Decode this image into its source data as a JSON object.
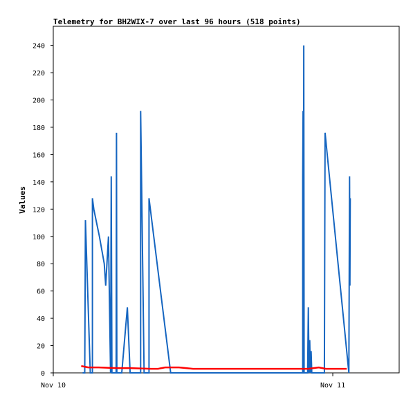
{
  "chart_data": {
    "type": "line",
    "title": "Telemetry for BH2WIX-7 over last 96 hours (518 points)",
    "xlabel": "",
    "ylabel": "Values",
    "ylim": [
      0,
      254
    ],
    "y_ticks": [
      0,
      20,
      40,
      60,
      80,
      100,
      120,
      140,
      160,
      180,
      200,
      220,
      240
    ],
    "x_tick_labels": [
      "Nov 10",
      "Nov 11"
    ],
    "grid": false,
    "legend": "none",
    "colors": {
      "blue": "#1565c0",
      "red": "#ff0000",
      "axis": "#000000"
    },
    "series": [
      {
        "color": "#1565c0",
        "x": [
          0.42,
          0.45,
          0.455,
          0.46,
          0.53,
          0.56,
          0.56,
          0.58,
          0.62,
          0.66,
          0.73,
          0.75,
          0.79,
          0.82,
          0.83,
          0.84,
          0.86,
          0.88,
          0.9,
          0.905,
          0.91,
          0.98,
          1.06,
          1.1,
          1.12,
          1.23,
          1.25,
          1.25,
          1.3,
          1.34,
          1.37,
          1.37,
          1.68,
          1.82,
          1.84,
          3.57,
          3.57,
          3.575,
          3.58,
          3.585,
          3.59,
          3.64,
          3.65,
          3.66,
          3.67,
          3.68,
          3.69,
          3.7,
          3.88,
          3.89,
          4.23,
          4.24,
          4.245,
          4.25
        ],
        "y": [
          0,
          0,
          56,
          112,
          0,
          0,
          128,
          120,
          110,
          100,
          80,
          64,
          100,
          0,
          144,
          0,
          0,
          0,
          0,
          176,
          0,
          0,
          48,
          0,
          0,
          0,
          0,
          192,
          0,
          0,
          0,
          128,
          0,
          0,
          0,
          0,
          144,
          192,
          0,
          240,
          0,
          0,
          48,
          0,
          24,
          0,
          16,
          0,
          0,
          176,
          0,
          144,
          64,
          128
        ]
      },
      {
        "color": "#ff0000",
        "x": [
          0.4,
          0.5,
          0.65,
          0.9,
          1.1,
          1.4,
          1.5,
          1.6,
          1.8,
          2.0,
          3.5,
          3.65,
          3.8,
          3.9,
          4.2
        ],
        "y": [
          5,
          4,
          4,
          3.5,
          3.5,
          3,
          3,
          4,
          4,
          3,
          3,
          3,
          4,
          3,
          3
        ]
      }
    ]
  }
}
